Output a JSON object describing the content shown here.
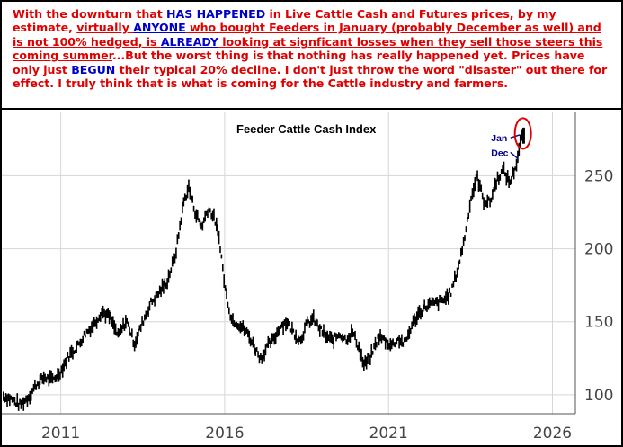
{
  "note": {
    "text_color": "#e00000",
    "highlight_color": "#0000c8",
    "segments": [
      {
        "text": "With the downturn that ",
        "style": "normal"
      },
      {
        "text": "HAS HAPPENED",
        "style": "highlight"
      },
      {
        "text": " in Live Cattle Cash and Futures prices, by my estimate, ",
        "style": "normal"
      },
      {
        "text": "virtually ",
        "style": "underline"
      },
      {
        "text": "ANYONE",
        "style": "highlight-underline"
      },
      {
        "text": " who bought Feeders in January (probably December as well) and is not 100% hedged, is ",
        "style": "underline"
      },
      {
        "text": "ALREADY",
        "style": "highlight-underline"
      },
      {
        "text": " looking at signficant losses when they sell those steers this coming summer",
        "style": "underline"
      },
      {
        "text": "...But the worst thing is that nothing has really happened yet. Prices have only just ",
        "style": "normal"
      },
      {
        "text": "BEGUN",
        "style": "highlight"
      },
      {
        "text": " their typical 20% decline. I don't just throw the word \"disaster\" out there for effect. I truly think that is what is coming for the Cattle industry  and farmers.",
        "style": "normal"
      }
    ]
  },
  "chart_data": {
    "type": "line",
    "title": "Feeder Cattle Cash Index",
    "xlabel": "",
    "ylabel": "",
    "xlim": [
      2009.2,
      2026.7
    ],
    "ylim": [
      87,
      294
    ],
    "x_ticks": [
      2011,
      2016,
      2021,
      2026
    ],
    "x_tick_labels": [
      "2011",
      "2016",
      "2021",
      "2026"
    ],
    "y_ticks": [
      100,
      150,
      200,
      250
    ],
    "y_tick_labels": [
      "100",
      "150",
      "200",
      "250"
    ],
    "grid": true,
    "y_axis_side": "right",
    "series": [
      {
        "style": "weekly price bars",
        "points": [
          [
            2009.25,
            99
          ],
          [
            2009.5,
            97
          ],
          [
            2009.75,
            93
          ],
          [
            2010.0,
            98
          ],
          [
            2010.25,
            107
          ],
          [
            2010.5,
            112
          ],
          [
            2010.75,
            110
          ],
          [
            2011.0,
            116
          ],
          [
            2011.25,
            127
          ],
          [
            2011.5,
            133
          ],
          [
            2011.75,
            142
          ],
          [
            2012.0,
            148
          ],
          [
            2012.25,
            157
          ],
          [
            2012.5,
            153
          ],
          [
            2012.75,
            140
          ],
          [
            2013.0,
            151
          ],
          [
            2013.25,
            135
          ],
          [
            2013.5,
            150
          ],
          [
            2013.75,
            163
          ],
          [
            2014.0,
            170
          ],
          [
            2014.25,
            178
          ],
          [
            2014.5,
            196
          ],
          [
            2014.75,
            232
          ],
          [
            2014.9,
            242
          ],
          [
            2015.1,
            225
          ],
          [
            2015.3,
            215
          ],
          [
            2015.5,
            228
          ],
          [
            2015.7,
            220
          ],
          [
            2015.85,
            205
          ],
          [
            2016.0,
            175
          ],
          [
            2016.2,
            152
          ],
          [
            2016.45,
            148
          ],
          [
            2016.7,
            142
          ],
          [
            2016.9,
            133
          ],
          [
            2017.1,
            125
          ],
          [
            2017.3,
            133
          ],
          [
            2017.5,
            138
          ],
          [
            2017.7,
            147
          ],
          [
            2017.9,
            150
          ],
          [
            2018.1,
            143
          ],
          [
            2018.3,
            137
          ],
          [
            2018.5,
            148
          ],
          [
            2018.7,
            152
          ],
          [
            2018.9,
            145
          ],
          [
            2019.1,
            140
          ],
          [
            2019.3,
            137
          ],
          [
            2019.5,
            142
          ],
          [
            2019.7,
            138
          ],
          [
            2019.9,
            143
          ],
          [
            2020.1,
            132
          ],
          [
            2020.25,
            120
          ],
          [
            2020.45,
            126
          ],
          [
            2020.7,
            140
          ],
          [
            2020.9,
            137
          ],
          [
            2021.1,
            134
          ],
          [
            2021.3,
            138
          ],
          [
            2021.5,
            135
          ],
          [
            2021.7,
            147
          ],
          [
            2021.9,
            155
          ],
          [
            2022.1,
            160
          ],
          [
            2022.3,
            162
          ],
          [
            2022.5,
            163
          ],
          [
            2022.7,
            165
          ],
          [
            2022.9,
            170
          ],
          [
            2023.1,
            185
          ],
          [
            2023.3,
            205
          ],
          [
            2023.5,
            233
          ],
          [
            2023.7,
            250
          ],
          [
            2023.9,
            233
          ],
          [
            2024.1,
            232
          ],
          [
            2024.3,
            247
          ],
          [
            2024.5,
            254
          ],
          [
            2024.7,
            245
          ],
          [
            2024.9,
            258
          ],
          [
            2025.0,
            270
          ],
          [
            2025.1,
            281
          ]
        ]
      }
    ],
    "annotations": [
      {
        "text": "Jan",
        "x": 2024.65,
        "y": 276
      },
      {
        "text": "Dec",
        "x": 2024.65,
        "y": 266
      }
    ],
    "annotation_color": "#00008b",
    "highlight_circle_color": "#e00000"
  }
}
